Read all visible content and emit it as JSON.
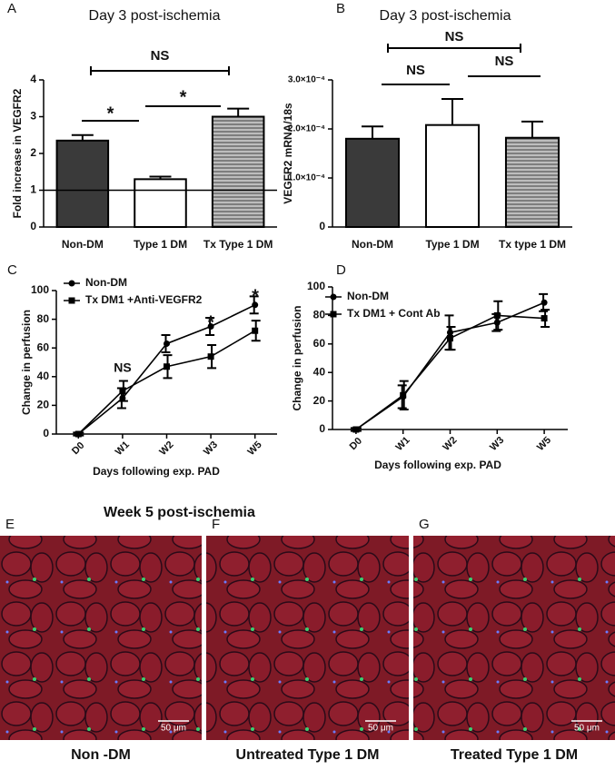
{
  "chart_data": [
    {
      "type": "bar",
      "panel_label": "A",
      "title": "Day 3 post-ischemia",
      "ylabel": "Fold increase in VEGFR2",
      "categories": [
        "Non-DM",
        "Type 1 DM",
        "Tx Type 1 DM"
      ],
      "values": [
        2.35,
        1.3,
        3.0
      ],
      "errors": [
        0.15,
        0.07,
        0.22
      ],
      "colors": [
        "#3a3a3a",
        "#ffffff",
        "#9a9a9a"
      ],
      "hatched": [
        false,
        false,
        true
      ],
      "hline": 1,
      "ylim": [
        0,
        4
      ],
      "yticks": [
        0,
        1,
        2,
        3,
        4
      ],
      "annotations": [
        "NS",
        "*",
        "*"
      ]
    },
    {
      "type": "bar",
      "panel_label": "B",
      "title": "Day 3 post-ischemia",
      "ylabel": "VEGFR2 mRNA/18s",
      "categories": [
        "Non-DM",
        "Type 1 DM",
        "Tx type 1 DM"
      ],
      "values": [
        0.00018,
        0.000208,
        0.000182
      ],
      "errors": [
        2.5e-05,
        5.3e-05,
        3.3e-05
      ],
      "colors": [
        "#3a3a3a",
        "#ffffff",
        "#9a9a9a"
      ],
      "hatched": [
        false,
        false,
        true
      ],
      "ylim": [
        0,
        0.0003
      ],
      "yticks": [
        0,
        {
          "value": 0.0001,
          "label": "1.0×10⁻⁴"
        },
        {
          "value": 0.0002,
          "label": "2.0×10⁻⁴"
        },
        {
          "value": 0.0003,
          "label": "3.0×10⁻⁴"
        }
      ],
      "annotations": [
        "NS",
        "NS",
        "NS"
      ]
    },
    {
      "type": "line",
      "panel_label": "C",
      "ylabel": "Change in perfusion",
      "xlabel": "Days following exp. PAD",
      "categories": [
        "D0",
        "W1",
        "W2",
        "W3",
        "W5"
      ],
      "series": [
        {
          "name": "Non-DM",
          "color": "#000000",
          "marker": "circle",
          "values": [
            0,
            25,
            63,
            75,
            90
          ],
          "errors": [
            1,
            7,
            6,
            6,
            6
          ]
        },
        {
          "name": "Tx DM1 +Anti-VEGFR2",
          "color": "#000000",
          "marker": "square",
          "values": [
            0,
            30,
            47,
            54,
            72
          ],
          "errors": [
            1,
            7,
            8,
            8,
            7
          ]
        }
      ],
      "ylim": [
        0,
        100
      ],
      "yticks": [
        0,
        20,
        40,
        60,
        80,
        100
      ],
      "annotations": [
        "NS",
        "*",
        "*"
      ]
    },
    {
      "type": "line",
      "panel_label": "D",
      "ylabel": "Change in perfusion",
      "xlabel": "Days following exp. PAD",
      "categories": [
        "D0",
        "W1",
        "W2",
        "W3",
        "W5"
      ],
      "series": [
        {
          "name": "Non-DM",
          "color": "#000000",
          "marker": "circle",
          "values": [
            0,
            23,
            68,
            75,
            89
          ],
          "errors": [
            1,
            8,
            12,
            6,
            6
          ]
        },
        {
          "name": "Tx DM1 + Cont Ab",
          "color": "#000000",
          "marker": "square",
          "values": [
            0,
            24,
            64,
            80,
            78
          ],
          "errors": [
            1,
            10,
            8,
            10,
            6
          ]
        }
      ],
      "ylim": [
        0,
        100
      ],
      "yticks": [
        0,
        20,
        40,
        60,
        80,
        100
      ],
      "annotations": []
    }
  ],
  "micrographs": {
    "title": "Week 5 post-ischemia",
    "images": [
      {
        "label": "E",
        "scale_bar": "50 μm",
        "caption": "Non -DM"
      },
      {
        "label": "F",
        "scale_bar": "50 μm",
        "caption": "Untreated Type 1 DM"
      },
      {
        "label": "G",
        "scale_bar": "50 μm",
        "caption": "Treated Type 1 DM"
      }
    ]
  }
}
